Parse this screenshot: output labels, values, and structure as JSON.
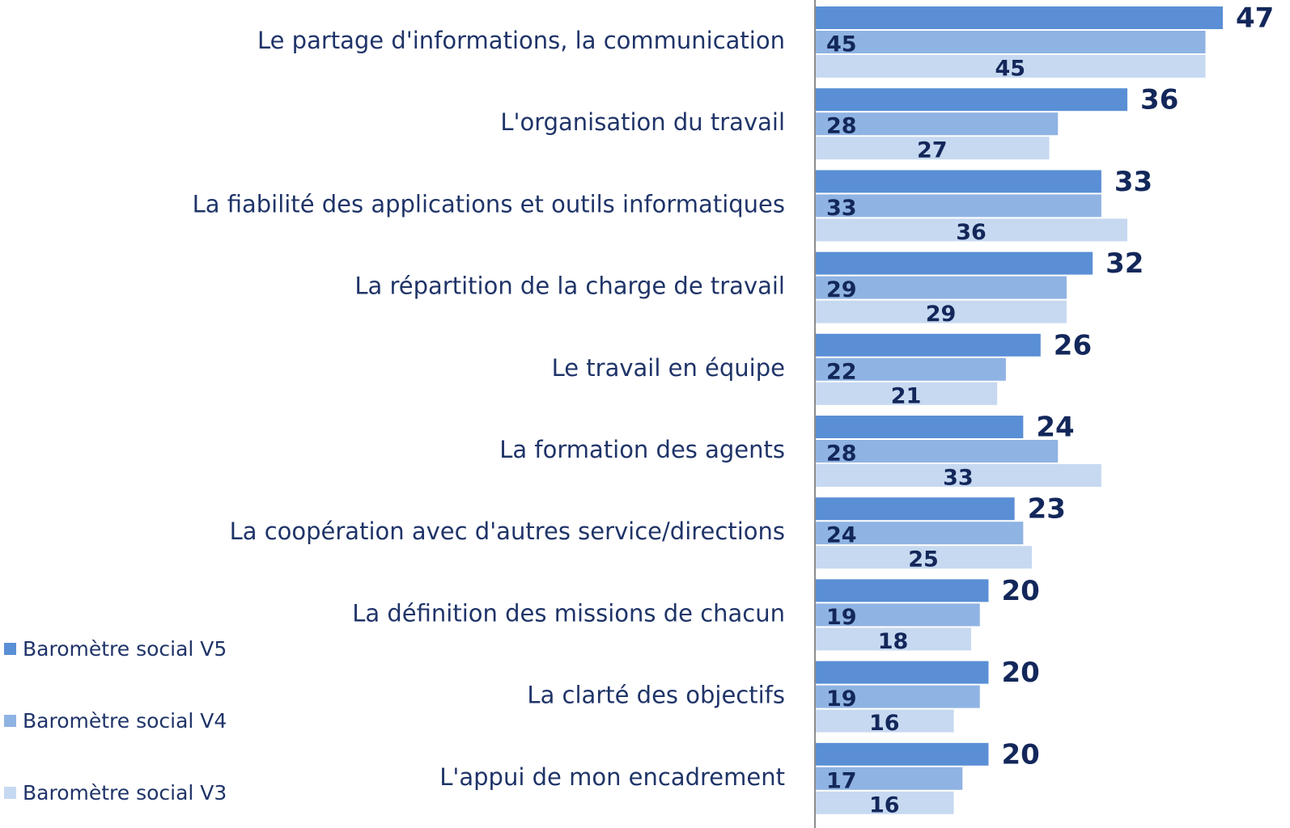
{
  "chart_data": {
    "type": "bar",
    "orientation": "horizontal",
    "categories": [
      "Le partage d'informations, la communication",
      "L'organisation du travail",
      "La fiabilité des applications et outils informatiques",
      "La répartition de la charge de travail",
      "Le travail en équipe",
      "La formation des agents",
      "La coopération avec d'autres service/directions",
      "La définition des missions de chacun",
      "La clarté des objectifs",
      "L'appui de mon encadrement"
    ],
    "series": [
      {
        "name": "Baromètre social V5",
        "color": "#5a8fd5",
        "values": [
          47,
          36,
          33,
          32,
          26,
          24,
          23,
          20,
          20,
          20
        ]
      },
      {
        "name": "Baromètre social V4",
        "color": "#8fb3e3",
        "values": [
          45,
          28,
          33,
          29,
          22,
          28,
          24,
          19,
          19,
          17
        ]
      },
      {
        "name": "Baromètre social V3",
        "color": "#c6d9f1",
        "values": [
          45,
          27,
          36,
          29,
          21,
          33,
          25,
          18,
          16,
          16
        ]
      }
    ],
    "legend": "bottom-left"
  }
}
